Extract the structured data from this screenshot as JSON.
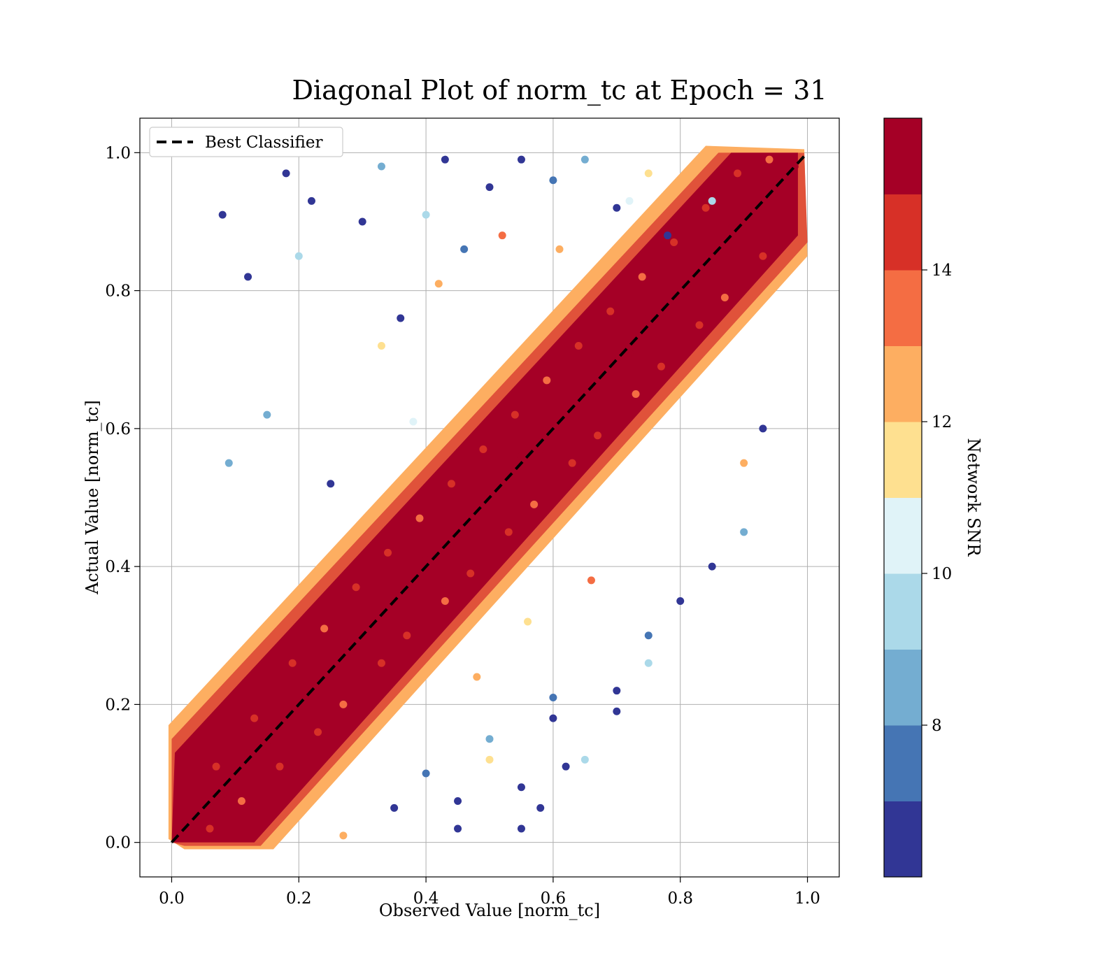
{
  "chart_data": {
    "type": "scatter",
    "title": "Diagonal Plot of norm_tc at Epoch = 31",
    "xlabel": "Observed Value [norm_tc]",
    "ylabel": "Actual Value [norm_tc]",
    "xlim": [
      -0.05,
      1.05
    ],
    "ylim": [
      -0.05,
      1.05
    ],
    "xticks": [
      "0.0",
      "0.2",
      "0.4",
      "0.6",
      "0.8",
      "1.0"
    ],
    "yticks": [
      "0.0",
      "0.2",
      "0.4",
      "0.6",
      "0.8",
      "1.0"
    ],
    "grid": true,
    "legend": {
      "placement": "top-left",
      "entries": [
        {
          "label": "Best Classifier",
          "style": "black dashed line"
        }
      ]
    },
    "reference_line": {
      "label": "Best Classifier",
      "x": [
        0,
        1
      ],
      "y": [
        0,
        1
      ],
      "color": "#000000",
      "dash": true
    },
    "colorbar": {
      "label": "Network SNR",
      "range": [
        6,
        16
      ],
      "ticks": [
        "8",
        "10",
        "12",
        "14"
      ],
      "tick_values": [
        8,
        10,
        12,
        14
      ],
      "levels": [
        {
          "from": 6,
          "to": 7,
          "color": "#313695"
        },
        {
          "from": 7,
          "to": 8,
          "color": "#4575b4"
        },
        {
          "from": 8,
          "to": 9,
          "color": "#74add1"
        },
        {
          "from": 9,
          "to": 10,
          "color": "#abd9e9"
        },
        {
          "from": 10,
          "to": 11,
          "color": "#e0f3f8"
        },
        {
          "from": 11,
          "to": 12,
          "color": "#fee090"
        },
        {
          "from": 12,
          "to": 13,
          "color": "#fdae61"
        },
        {
          "from": 13,
          "to": 14,
          "color": "#f46d43"
        },
        {
          "from": 14,
          "to": 15,
          "color": "#d73027"
        },
        {
          "from": 15,
          "to": 16,
          "color": "#a50026"
        }
      ]
    },
    "series": [
      {
        "name": "",
        "x": [
          0.02,
          0.05,
          0.08,
          0.1,
          0.12,
          0.15,
          0.18,
          0.2,
          0.22,
          0.25,
          0.28,
          0.3,
          0.32,
          0.35,
          0.38,
          0.4,
          0.42,
          0.45,
          0.48,
          0.5,
          0.52,
          0.55,
          0.58,
          0.6,
          0.62,
          0.65,
          0.68,
          0.7,
          0.72,
          0.75,
          0.78,
          0.8,
          0.82,
          0.85,
          0.88,
          0.9,
          0.92,
          0.95,
          0.98,
          0.07,
          0.13,
          0.19,
          0.24,
          0.29,
          0.34,
          0.39,
          0.44,
          0.49,
          0.54,
          0.59,
          0.64,
          0.69,
          0.74,
          0.79,
          0.84,
          0.89,
          0.94,
          0.06,
          0.11,
          0.17,
          0.23,
          0.27,
          0.33,
          0.37,
          0.43,
          0.47,
          0.53,
          0.57,
          0.63,
          0.67,
          0.73,
          0.77,
          0.83,
          0.87,
          0.93,
          0.08,
          0.09,
          0.12,
          0.15,
          0.18,
          0.2,
          0.22,
          0.25,
          0.3,
          0.33,
          0.36,
          0.4,
          0.43,
          0.46,
          0.5,
          0.55,
          0.6,
          0.65,
          0.7,
          0.75,
          0.78,
          0.85,
          0.9,
          0.93,
          0.35,
          0.4,
          0.45,
          0.5,
          0.55,
          0.6,
          0.65,
          0.7,
          0.75,
          0.8,
          0.85,
          0.9,
          0.45,
          0.5,
          0.55,
          0.6,
          0.62,
          0.7,
          0.75,
          0.58,
          0.33,
          0.42,
          0.38,
          0.52,
          0.61,
          0.72,
          0.48,
          0.56,
          0.66,
          0.27
        ],
        "y": [
          0.03,
          0.06,
          0.07,
          0.11,
          0.13,
          0.14,
          0.19,
          0.2,
          0.23,
          0.24,
          0.29,
          0.3,
          0.31,
          0.36,
          0.37,
          0.41,
          0.42,
          0.44,
          0.49,
          0.5,
          0.51,
          0.56,
          0.57,
          0.6,
          0.63,
          0.64,
          0.69,
          0.7,
          0.71,
          0.76,
          0.77,
          0.8,
          0.83,
          0.84,
          0.89,
          0.9,
          0.91,
          0.96,
          0.98,
          0.11,
          0.18,
          0.26,
          0.31,
          0.37,
          0.42,
          0.47,
          0.52,
          0.57,
          0.62,
          0.67,
          0.72,
          0.77,
          0.82,
          0.87,
          0.92,
          0.97,
          0.99,
          0.02,
          0.06,
          0.11,
          0.16,
          0.2,
          0.26,
          0.3,
          0.35,
          0.39,
          0.45,
          0.49,
          0.55,
          0.59,
          0.65,
          0.69,
          0.75,
          0.79,
          0.85,
          0.91,
          0.55,
          0.82,
          0.62,
          0.97,
          0.85,
          0.93,
          0.52,
          0.9,
          0.98,
          0.76,
          0.91,
          0.99,
          0.86,
          0.95,
          0.99,
          0.96,
          0.99,
          0.92,
          0.97,
          0.88,
          0.93,
          0.55,
          0.6,
          0.05,
          0.1,
          0.02,
          0.15,
          0.08,
          0.18,
          0.12,
          0.22,
          0.3,
          0.35,
          0.4,
          0.45,
          0.06,
          0.12,
          0.02,
          0.21,
          0.11,
          0.19,
          0.26,
          0.05,
          0.72,
          0.81,
          0.61,
          0.88,
          0.86,
          0.93,
          0.24,
          0.32,
          0.38,
          0.01
        ],
        "snr": [
          15.5,
          15.6,
          15.2,
          15.8,
          15.4,
          15.7,
          15.3,
          15.9,
          15.1,
          15.6,
          15.4,
          15.7,
          15.3,
          15.8,
          15.2,
          15.5,
          15.6,
          15.4,
          15.7,
          15.5,
          15.3,
          15.8,
          15.2,
          15.6,
          15.4,
          15.7,
          15.3,
          15.5,
          15.6,
          15.4,
          15.7,
          15.5,
          15.3,
          15.8,
          15.2,
          15.6,
          15.4,
          15.7,
          15.5,
          14.4,
          14.1,
          14.6,
          13.7,
          14.2,
          14.5,
          13.6,
          14.3,
          14.7,
          14.0,
          13.8,
          14.4,
          14.6,
          13.9,
          14.2,
          14.5,
          14.1,
          13.7,
          14.3,
          13.8,
          14.6,
          14.1,
          13.5,
          14.4,
          14.2,
          13.9,
          14.6,
          14.0,
          13.6,
          14.3,
          14.5,
          13.8,
          14.2,
          14.4,
          13.7,
          14.1,
          6.5,
          8.4,
          6.3,
          8.7,
          6.6,
          9.2,
          6.4,
          6.8,
          6.2,
          8.1,
          6.7,
          9.5,
          6.3,
          7.4,
          6.1,
          6.6,
          7.2,
          8.6,
          6.4,
          11.3,
          6.5,
          9.4,
          12.6,
          6.2,
          6.4,
          7.3,
          6.2,
          8.8,
          6.6,
          6.3,
          9.6,
          6.5,
          7.6,
          6.1,
          6.7,
          8.5,
          6.3,
          11.4,
          6.8,
          7.8,
          6.2,
          6.4,
          9.8,
          6.5,
          11.6,
          12.4,
          10.5,
          13.2,
          12.1,
          10.3,
          12.8,
          11.8,
          13.4,
          12.5
        ]
      }
    ]
  }
}
